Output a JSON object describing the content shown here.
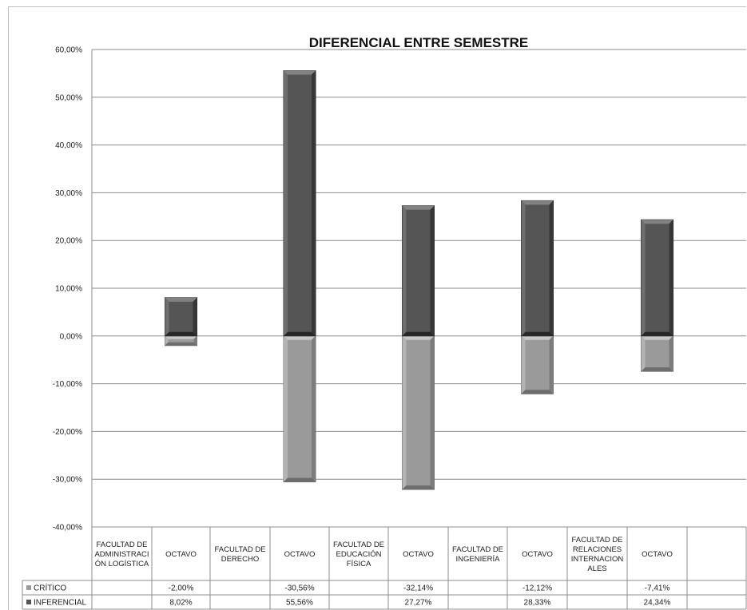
{
  "chart_data": {
    "type": "bar",
    "stacked": true,
    "title": "DIFERENCIAL ENTRE SEMESTRE",
    "xlabel": "",
    "ylabel": "",
    "ylim": [
      -0.4,
      0.6
    ],
    "ytick_labels": [
      "60,00%",
      "50,00%",
      "40,00%",
      "30,00%",
      "20,00%",
      "10,00%",
      "0,00%",
      "-10,00%",
      "-20,00%",
      "-30,00%",
      "-40,00%"
    ],
    "grid": true,
    "legend_placement": "data-table",
    "categories": [
      [
        "FACULTAD DE",
        "ADMINISTRACI",
        "ÓN LOGÍSTICA"
      ],
      [
        "OCTAVO"
      ],
      [
        "FACULTAD DE",
        "DERECHO"
      ],
      [
        "OCTAVO"
      ],
      [
        "FACULTAD DE",
        "EDUCACIÓN",
        "FÍSICA"
      ],
      [
        "OCTAVO"
      ],
      [
        "FACULTAD DE",
        "INGENIERÍA"
      ],
      [
        "OCTAVO"
      ],
      [
        "FACULTAD DE",
        "RELACIONES",
        "INTERNACION",
        "ALES"
      ],
      [
        "OCTAVO"
      ],
      [
        ""
      ]
    ],
    "series": [
      {
        "name": "CRÍTICO",
        "color": "#9a9a9a",
        "values": [
          null,
          -0.02,
          null,
          -0.3056,
          null,
          -0.3214,
          null,
          -0.1212,
          null,
          -0.0741,
          null
        ],
        "labels": [
          "",
          "-2,00%",
          "",
          "-30,56%",
          "",
          "-32,14%",
          "",
          "-12,12%",
          "",
          "-7,41%",
          ""
        ]
      },
      {
        "name": "INFERENCIAL",
        "color": "#555555",
        "values": [
          null,
          0.0802,
          null,
          0.5556,
          null,
          0.2727,
          null,
          0.2833,
          null,
          0.2434,
          null
        ],
        "labels": [
          "",
          "8,02%",
          "",
          "55,56%",
          "",
          "27,27%",
          "",
          "28,33%",
          "",
          "24,34%",
          ""
        ]
      }
    ]
  }
}
